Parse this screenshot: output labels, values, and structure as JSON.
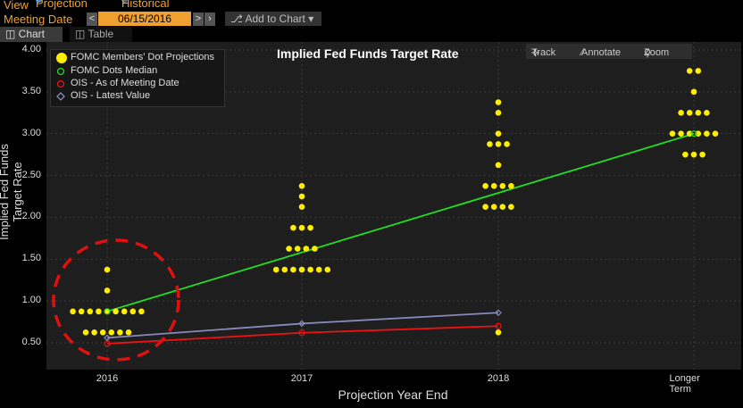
{
  "header": {
    "view_label": "View",
    "view_options": [
      "Projection",
      "Historical"
    ],
    "meeting_date_label": "Meeting Date",
    "meeting_date": "06/15/2016",
    "prev_arrow": "<",
    "next_arrow": ">",
    "add_to_chart": "Add to Chart"
  },
  "tabs": [
    {
      "label": "Chart"
    },
    {
      "label": "Table"
    }
  ],
  "toolbar": {
    "track": "Track",
    "annotate": "Annotate",
    "zoom": "Zoom"
  },
  "colors": {
    "dots": "#ffee00",
    "median": "#22dd22",
    "ois_meeting": "#ee1111",
    "ois_latest": "#8888bb",
    "highlight_circle": "#e01010",
    "accent": "#f0a030"
  },
  "chart_data": {
    "type": "scatter",
    "title": "Implied Fed Funds Target Rate",
    "xlabel": "Projection Year End",
    "ylabel": "Implied Fed Funds Target Rate",
    "categories": [
      "2016",
      "2017",
      "2018",
      "Longer Term"
    ],
    "y_ticks": [
      "0.50",
      "1.00",
      "1.50",
      "2.00",
      "2.50",
      "3.00",
      "3.50",
      "4.00"
    ],
    "ylim": [
      0.25,
      4.05
    ],
    "legend": [
      "FOMC Members' Dot Projections",
      "FOMC Dots Median",
      "OIS - As of Meeting Date",
      "OIS - Latest Value"
    ],
    "legend_position": "top-left",
    "dot_projections": [
      {
        "category": "2016",
        "points": [
          {
            "y": 1.375,
            "n": 1
          },
          {
            "y": 1.125,
            "n": 1
          },
          {
            "y": 0.875,
            "n": 9
          },
          {
            "y": 0.625,
            "n": 6
          }
        ]
      },
      {
        "category": "2017",
        "points": [
          {
            "y": 2.375,
            "n": 1
          },
          {
            "y": 2.25,
            "n": 1
          },
          {
            "y": 2.125,
            "n": 1
          },
          {
            "y": 1.875,
            "n": 3
          },
          {
            "y": 1.625,
            "n": 4
          },
          {
            "y": 1.375,
            "n": 7
          }
        ]
      },
      {
        "category": "2018",
        "points": [
          {
            "y": 3.375,
            "n": 1
          },
          {
            "y": 3.25,
            "n": 1
          },
          {
            "y": 3.0,
            "n": 1
          },
          {
            "y": 2.875,
            "n": 3
          },
          {
            "y": 2.625,
            "n": 1
          },
          {
            "y": 2.375,
            "n": 4
          },
          {
            "y": 2.125,
            "n": 4
          },
          {
            "y": 0.625,
            "n": 1
          }
        ]
      },
      {
        "category": "Longer Term",
        "points": [
          {
            "y": 3.75,
            "n": 2
          },
          {
            "y": 3.5,
            "n": 1
          },
          {
            "y": 3.25,
            "n": 4
          },
          {
            "y": 3.0,
            "n": 6
          },
          {
            "y": 2.75,
            "n": 3
          }
        ]
      }
    ],
    "series": [
      {
        "name": "FOMC Dots Median",
        "x": [
          "2016",
          "Longer Term"
        ],
        "values": [
          0.875,
          3.0
        ]
      },
      {
        "name": "OIS - As of Meeting Date",
        "x": [
          "2016",
          "2017",
          "2018"
        ],
        "values": [
          0.49,
          0.62,
          0.7
        ]
      },
      {
        "name": "OIS - Latest Value",
        "x": [
          "2016",
          "2017",
          "2018"
        ],
        "values": [
          0.56,
          0.73,
          0.86
        ]
      }
    ]
  }
}
